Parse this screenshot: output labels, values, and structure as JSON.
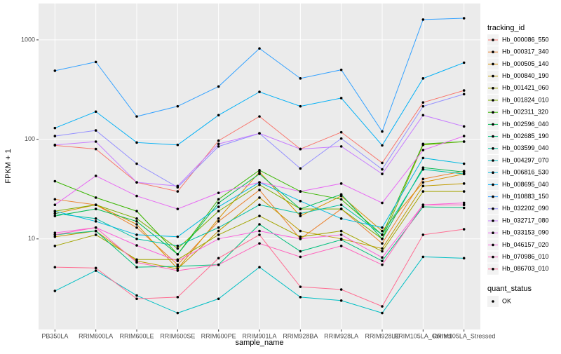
{
  "chart_data": {
    "type": "line",
    "log_y": true,
    "grid": true,
    "x_label": "sample_name",
    "y_label": "FPKM + 1",
    "legend_title": "tracking_id",
    "legend_position": "right",
    "shape_legend": {
      "title": "quant_status",
      "items": [
        "OK"
      ]
    },
    "point_color": "#000000",
    "categories": [
      "PB350LA",
      "RRIM600LA",
      "RRIM600LE",
      "RRIM600SE",
      "RRIM600PE",
      "RRIM901LA",
      "RRIM928BA",
      "RRIM928LA",
      "RRIM928LE",
      "RRIM105LA_Control",
      "RRIM105LA_Stressed"
    ],
    "ylim": [
      1.23,
      2320
    ],
    "yticks": [
      10,
      100,
      1000
    ],
    "series": [
      {
        "name": "Hb_000086_550",
        "color": "#F8766D",
        "values": [
          87,
          80,
          37,
          30,
          97,
          170,
          80,
          118,
          58,
          235,
          310
        ]
      },
      {
        "name": "Hb_000317_340",
        "color": "#EA8331",
        "values": [
          25,
          22,
          13,
          5.5,
          15,
          31,
          10,
          20,
          9,
          40,
          48
        ]
      },
      {
        "name": "Hb_000505_140",
        "color": "#D89000",
        "values": [
          18,
          22,
          14,
          5,
          16,
          47,
          17,
          27,
          12,
          37,
          45
        ]
      },
      {
        "name": "Hb_000840_190",
        "color": "#C09B00",
        "values": [
          10.5,
          12,
          6,
          5,
          12,
          26,
          12,
          10,
          8,
          34,
          36
        ]
      },
      {
        "name": "Hb_001421_060",
        "color": "#A3A500",
        "values": [
          8.5,
          11,
          6.2,
          6.2,
          11,
          17,
          10.5,
          12,
          7.5,
          30,
          30
        ]
      },
      {
        "name": "Hb_001824_010",
        "color": "#7CAE00",
        "values": [
          19,
          22,
          16,
          8,
          19,
          35,
          20,
          20,
          10,
          88,
          95
        ]
      },
      {
        "name": "Hb_002311_320",
        "color": "#39B600",
        "values": [
          38,
          26,
          19,
          7,
          25,
          49,
          30,
          25,
          11,
          90,
          95
        ]
      },
      {
        "name": "Hb_002596_040",
        "color": "#00BB4E",
        "values": [
          17,
          20,
          15,
          7,
          23,
          45,
          20,
          28,
          10,
          52,
          47
        ]
      },
      {
        "name": "Hb_002685_190",
        "color": "#00BF7D",
        "values": [
          11,
          12,
          5.2,
          5.3,
          5.5,
          14,
          7.5,
          9.8,
          6,
          21,
          20.5
        ]
      },
      {
        "name": "Hb_003599_040",
        "color": "#00C1A3",
        "values": [
          18,
          16,
          10,
          8.5,
          13,
          22,
          18,
          22,
          11,
          50,
          45
        ]
      },
      {
        "name": "Hb_004297_070",
        "color": "#00BFC4",
        "values": [
          3,
          4.8,
          2.7,
          1.8,
          2.5,
          5.2,
          2.6,
          2.4,
          1.8,
          6.6,
          6.4
        ]
      },
      {
        "name": "Hb_006816_530",
        "color": "#00BAE0",
        "values": [
          19,
          15,
          11,
          10.5,
          21,
          37,
          24,
          16,
          13,
          65,
          57
        ]
      },
      {
        "name": "Hb_008695_040",
        "color": "#00B0F6",
        "values": [
          130,
          190,
          93,
          88,
          175,
          300,
          215,
          260,
          87,
          410,
          590
        ]
      },
      {
        "name": "Hb_010883_150",
        "color": "#35A2FF",
        "values": [
          490,
          600,
          170,
          215,
          340,
          820,
          410,
          500,
          120,
          1600,
          1650
        ]
      },
      {
        "name": "Hb_032202_090",
        "color": "#9590FF",
        "values": [
          108,
          123,
          57,
          33,
          85,
          115,
          51,
          102,
          50,
          215,
          285
        ]
      },
      {
        "name": "Hb_032717_080",
        "color": "#C77CFF",
        "values": [
          88,
          95,
          37,
          34,
          90,
          115,
          80,
          85,
          45,
          175,
          135
        ]
      },
      {
        "name": "Hb_033153_090",
        "color": "#E76BF3",
        "values": [
          22,
          43,
          27,
          20,
          29,
          37,
          30,
          36,
          23,
          78,
          108
        ]
      },
      {
        "name": "Hb_046157_020",
        "color": "#FA62DB",
        "values": [
          11.5,
          13,
          8.6,
          6,
          10,
          12,
          10,
          11,
          6.5,
          22,
          23
        ]
      },
      {
        "name": "Hb_070986_010",
        "color": "#FF62BC",
        "values": [
          11,
          13,
          5.8,
          4.8,
          5.5,
          9,
          6.6,
          8.5,
          5.5,
          22,
          22
        ]
      },
      {
        "name": "Hb_086703_010",
        "color": "#FF6C91",
        "values": [
          5.2,
          5.1,
          2.5,
          2.6,
          6.4,
          11,
          3.3,
          3.1,
          2.1,
          11,
          12.5
        ]
      }
    ]
  }
}
